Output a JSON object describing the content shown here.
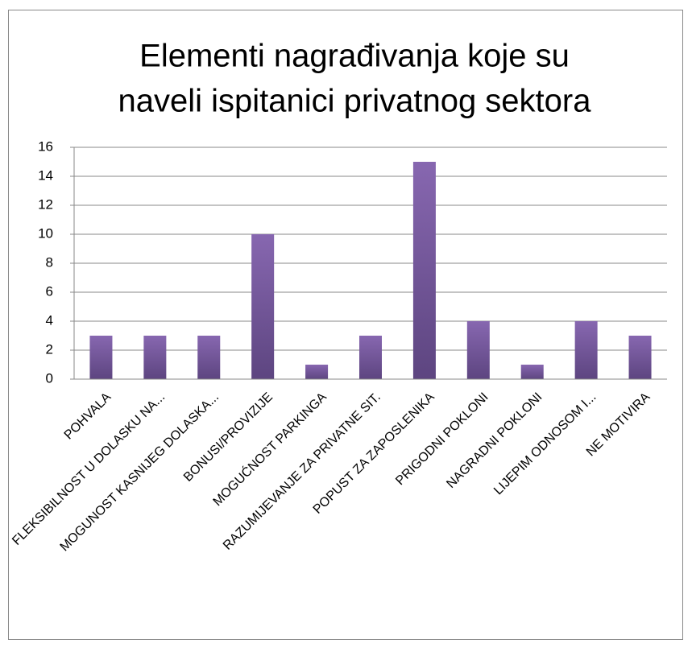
{
  "chart_data": {
    "type": "bar",
    "title": [
      "Elementi nagrađivanja koje su",
      "naveli ispitanici privatnog sektora"
    ],
    "categories": [
      "POHVALA",
      "FLEKSIBILNOST U DOLASKU NA...",
      "MOGUNOST KASNIJEG DOLASKA...",
      "BONUSI/PROVIZIJE",
      "MOGUĆNOST PARKINGA",
      "RAZUMIJEVANJE ZA PRIVATNE SIT.",
      "POPUST ZA ZAPOSLENIKA",
      "PRIGODNI POKLONI",
      "NAGRADNI POKLONI",
      "LIJEPIM ODNOSOM I...",
      "NE MOTIVIRA"
    ],
    "values": [
      3,
      3,
      3,
      10,
      1,
      3,
      15,
      4,
      1,
      4,
      3
    ],
    "color": "#8064a2",
    "ylim": [
      0,
      16
    ],
    "yticks": [
      0,
      2,
      4,
      6,
      8,
      10,
      12,
      14,
      16
    ],
    "grid": true
  }
}
